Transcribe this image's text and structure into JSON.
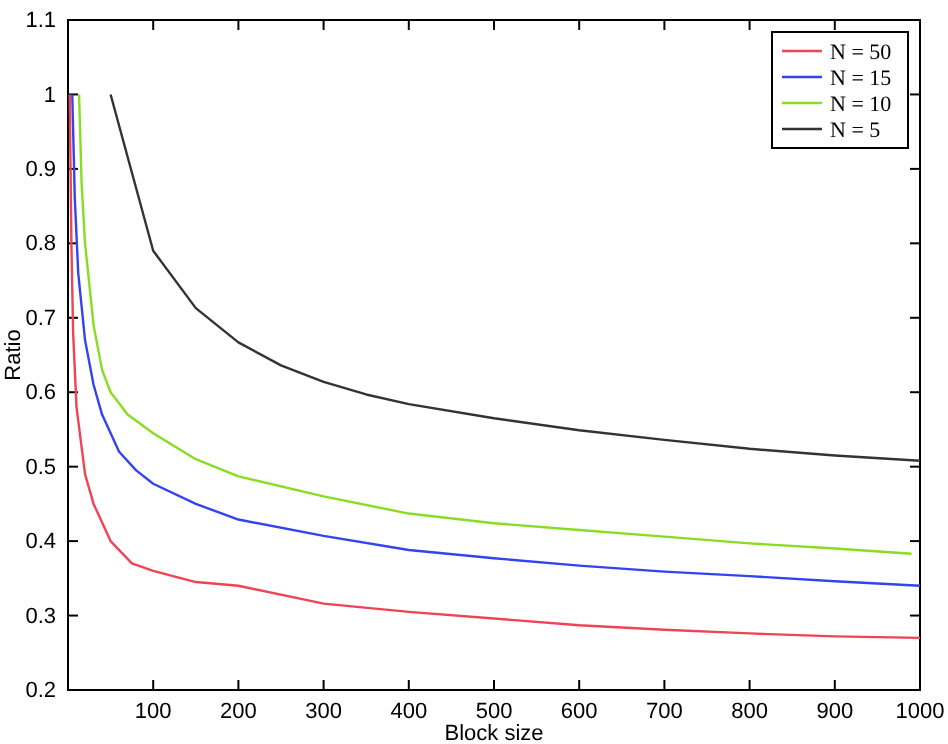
{
  "chart_data": {
    "type": "line",
    "xlabel": "Block size",
    "ylabel": "Ratio",
    "xlim": [
      0,
      1000
    ],
    "xticks": [
      100,
      200,
      300,
      400,
      500,
      600,
      700,
      800,
      900,
      1000
    ],
    "ylim": [
      0.2,
      1.1
    ],
    "yticks": [
      0.2,
      0.3,
      0.4,
      0.5,
      0.6,
      0.7,
      0.8,
      0.9,
      1,
      1.1
    ],
    "legend": "top right",
    "grid": false,
    "series": [
      {
        "name": "N = 50",
        "color": "#ee4455",
        "x": [
          2,
          4,
          6,
          10,
          20,
          30,
          50,
          75,
          100,
          150,
          200,
          300,
          400,
          500,
          600,
          700,
          800,
          900,
          1000
        ],
        "values": [
          1.0,
          0.8,
          0.68,
          0.58,
          0.49,
          0.45,
          0.4,
          0.37,
          0.36,
          0.345,
          0.34,
          0.316,
          0.305,
          0.296,
          0.287,
          0.281,
          0.276,
          0.272,
          0.27
        ]
      },
      {
        "name": "N = 15",
        "color": "#3344ee",
        "x": [
          5,
          8,
          12,
          20,
          30,
          40,
          60,
          80,
          100,
          150,
          200,
          300,
          400,
          500,
          600,
          700,
          800,
          900,
          1000
        ],
        "values": [
          1.0,
          0.86,
          0.76,
          0.67,
          0.61,
          0.57,
          0.52,
          0.495,
          0.477,
          0.45,
          0.429,
          0.407,
          0.388,
          0.377,
          0.367,
          0.359,
          0.353,
          0.346,
          0.34
        ]
      },
      {
        "name": "N = 10",
        "color": "#88dd22",
        "x": [
          13,
          16,
          20,
          30,
          40,
          50,
          70,
          100,
          150,
          200,
          300,
          400,
          500,
          600,
          700,
          800,
          900,
          990
        ],
        "values": [
          1.0,
          0.88,
          0.8,
          0.69,
          0.63,
          0.6,
          0.57,
          0.545,
          0.51,
          0.487,
          0.46,
          0.437,
          0.424,
          0.415,
          0.406,
          0.397,
          0.39,
          0.383
        ]
      },
      {
        "name": "N = 5",
        "color": "#333333",
        "x": [
          50,
          100,
          150,
          200,
          250,
          300,
          350,
          400,
          500,
          600,
          700,
          800,
          900,
          1000
        ],
        "values": [
          1.0,
          0.79,
          0.713,
          0.667,
          0.636,
          0.614,
          0.597,
          0.584,
          0.565,
          0.549,
          0.536,
          0.524,
          0.515,
          0.508
        ]
      }
    ]
  }
}
